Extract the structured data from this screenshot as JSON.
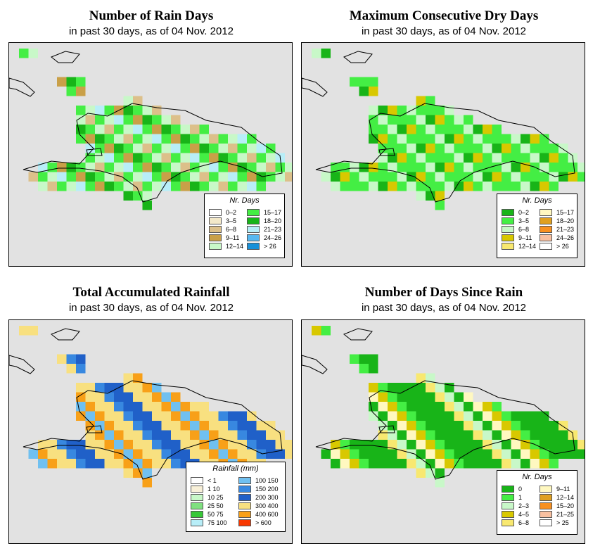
{
  "panels": [
    {
      "title": "Number of Rain Days",
      "subtitle": "in past 30 days, as of  04 Nov. 2012",
      "legend_title": "Nr. Days",
      "legend": [
        {
          "label": "0–2",
          "color": "#ffffff"
        },
        {
          "label": "3–5",
          "color": "#f3e8c8"
        },
        {
          "label": "6–8",
          "color": "#dcc08a"
        },
        {
          "label": "9–11",
          "color": "#c9a048"
        },
        {
          "label": "12–14",
          "color": "#c8f8c8"
        },
        {
          "label": "15–17",
          "color": "#44ee44"
        },
        {
          "label": "18–20",
          "color": "#18b418"
        },
        {
          "label": "21–23",
          "color": "#b8eef8"
        },
        {
          "label": "24–26",
          "color": "#58b8f0"
        },
        {
          "label": "> 26",
          "color": "#1890d8"
        }
      ]
    },
    {
      "title": "Maximum Consecutive Dry Days",
      "subtitle": "in past 30 days, as of  04 Nov. 2012",
      "legend_title": "Nr. Days",
      "legend": [
        {
          "label": "0–2",
          "color": "#18b418"
        },
        {
          "label": "3–5",
          "color": "#44ee44"
        },
        {
          "label": "6–8",
          "color": "#c8f8c8"
        },
        {
          "label": "9–11",
          "color": "#d8c800"
        },
        {
          "label": "12–14",
          "color": "#f8e870"
        },
        {
          "label": "15–17",
          "color": "#fff8c0"
        },
        {
          "label": "18–20",
          "color": "#e0a020"
        },
        {
          "label": "21–23",
          "color": "#f89020"
        },
        {
          "label": "24–26",
          "color": "#f8c0a0"
        },
        {
          "label": "> 26",
          "color": "#ffffff"
        }
      ]
    },
    {
      "title": "Total Accumulated Rainfall",
      "subtitle": "in past 30 days, as of  04 Nov. 2012",
      "legend_title": "Rainfall (mm)",
      "legend": [
        {
          "label": "< 1",
          "color": "#ffffff"
        },
        {
          "label": "1   10",
          "color": "#f8f0d8"
        },
        {
          "label": "10   25",
          "color": "#c8f8c8"
        },
        {
          "label": "25   50",
          "color": "#80e080"
        },
        {
          "label": "50   75",
          "color": "#38c838"
        },
        {
          "label": "75  100",
          "color": "#b8eef8"
        },
        {
          "label": "100  150",
          "color": "#70c0f0"
        },
        {
          "label": "150  200",
          "color": "#3888e0"
        },
        {
          "label": "200  300",
          "color": "#2060c8"
        },
        {
          "label": "300  400",
          "color": "#f8e080"
        },
        {
          "label": "400  600",
          "color": "#f8a018"
        },
        {
          "label": "> 600",
          "color": "#f83800"
        }
      ]
    },
    {
      "title": "Number of Days Since Rain",
      "subtitle": "in past 30 days, as of  04 Nov. 2012",
      "legend_title": "Nr. Days",
      "legend": [
        {
          "label": "0",
          "color": "#18b418"
        },
        {
          "label": "1",
          "color": "#44ee44"
        },
        {
          "label": "2–3",
          "color": "#c8f8c8"
        },
        {
          "label": "4–5",
          "color": "#d8c800"
        },
        {
          "label": "6–8",
          "color": "#f8e870"
        },
        {
          "label": "9–11",
          "color": "#fff8c0"
        },
        {
          "label": "12–14",
          "color": "#e0a020"
        },
        {
          "label": "15–20",
          "color": "#f89020"
        },
        {
          "label": "21–25",
          "color": "#f8c0a0"
        },
        {
          "label": "> 25",
          "color": "#ffffff"
        }
      ]
    }
  ],
  "grids": [
    [
      "............................",
      ".....44.......................",
      "....4444......................",
      ".1.....4......................",
      "4..............................",
      "441.4............................",
      "......555.5......................",
      "......33666666...................",
      "......3.75655566.................",
      ".......335567676555..............",
      ".........65676766566777.8.......",
      "........1..66567657766565........",
      ".........4555677766656555........",
      ".4...11..5566766676665555555.....",
      "1555555.55555555544444444444......",
      "..444444445555555555555.55.5......",
      "...4444..44.444.4555555..5..4.....",
      "..........................4........",
      "...............5..4........."
    ]
  ]
}
